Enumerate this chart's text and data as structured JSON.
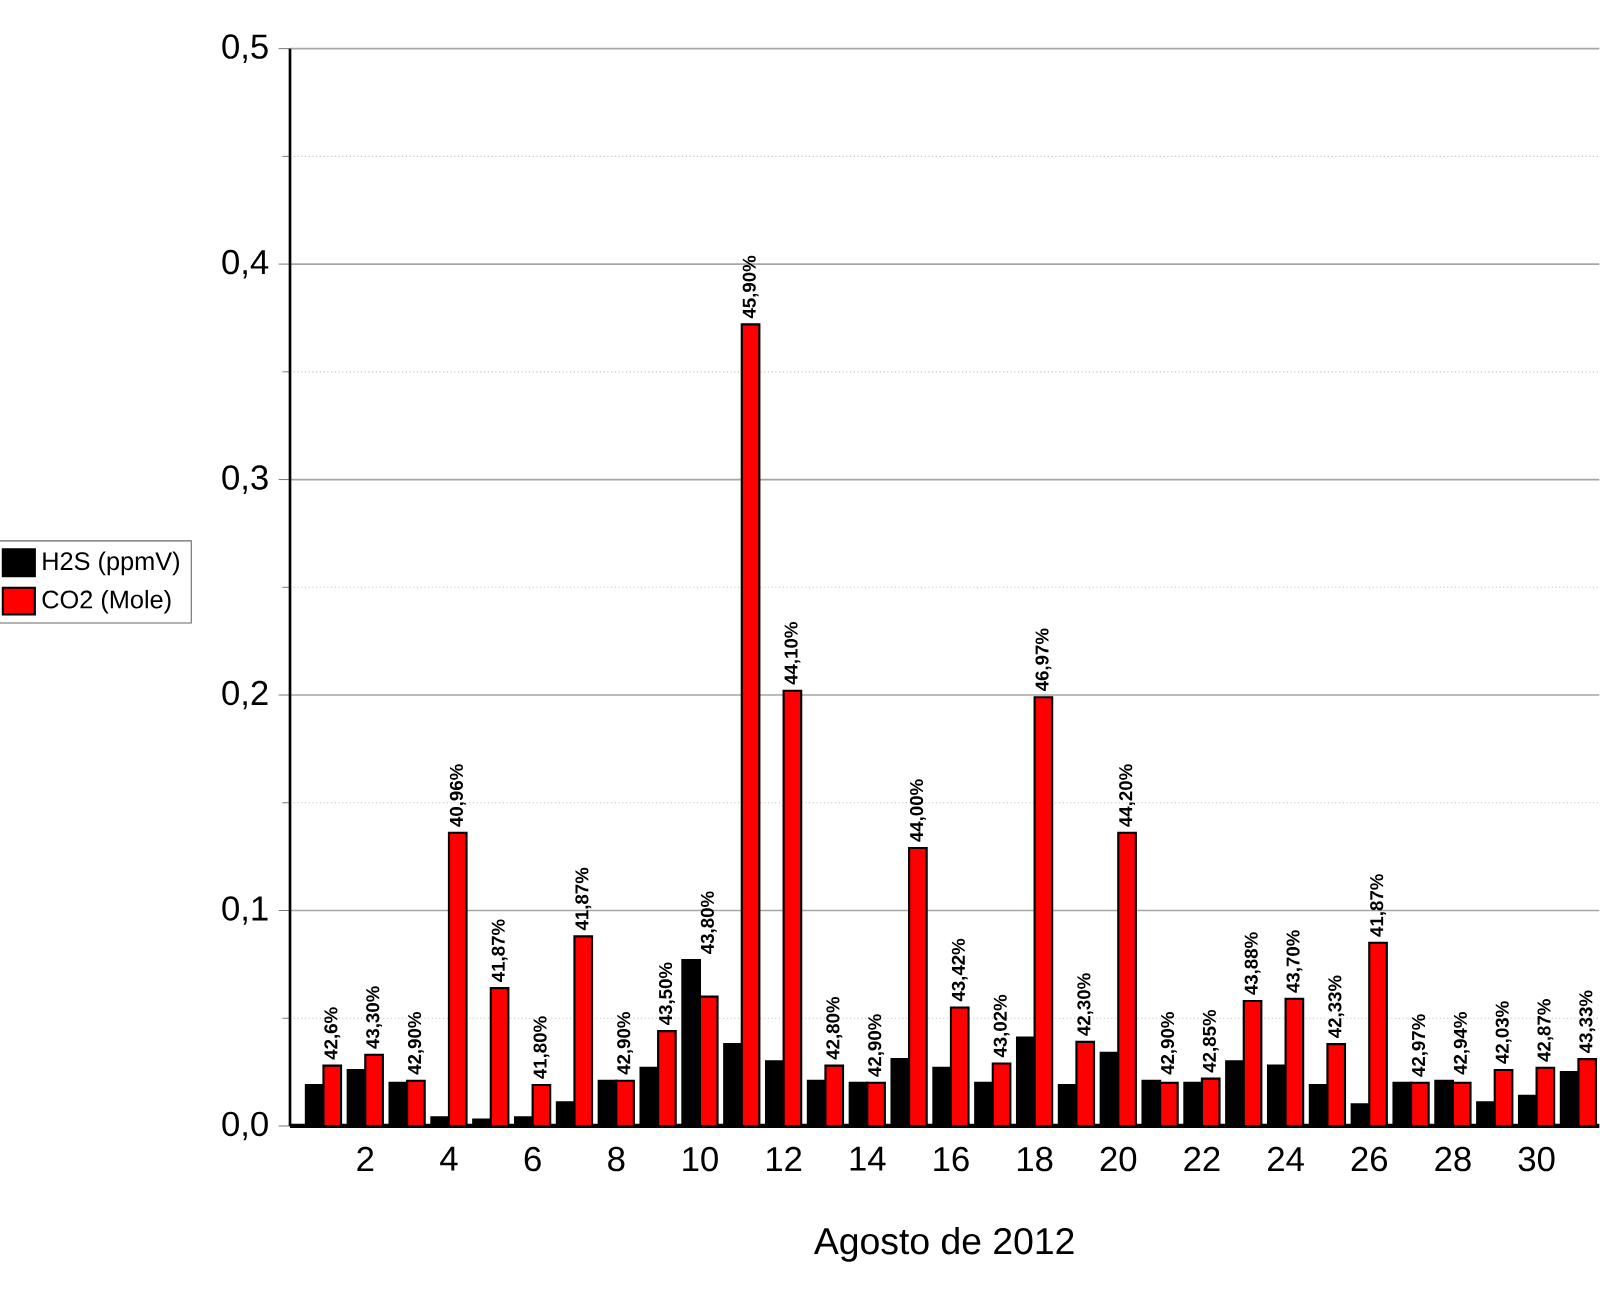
{
  "chart_data": {
    "type": "bar",
    "xlabel": "Agosto de 2012",
    "x": [
      1,
      2,
      3,
      4,
      5,
      6,
      7,
      8,
      9,
      10,
      11,
      12,
      13,
      14,
      15,
      16,
      17,
      18,
      19,
      20,
      21,
      22,
      23,
      24,
      25,
      26,
      27,
      28,
      29,
      30,
      31
    ],
    "series": [
      {
        "name": "H2S (ppmV)",
        "color": "#000000",
        "values": [
          0.019,
          0.026,
          0.02,
          0.004,
          0.003,
          0.004,
          0.011,
          0.021,
          0.027,
          0.077,
          0.038,
          0.03,
          0.021,
          0.02,
          0.031,
          0.027,
          0.02,
          0.041,
          0.019,
          0.034,
          0.021,
          0.02,
          0.03,
          0.028,
          0.019,
          0.01,
          0.02,
          0.021,
          0.011,
          0.014,
          0.025
        ]
      },
      {
        "name": "CO2 (Mole)",
        "color": "#ff0000",
        "values": [
          0.028,
          0.033,
          0.021,
          0.136,
          0.064,
          0.019,
          0.088,
          0.021,
          0.044,
          0.06,
          0.372,
          0.202,
          0.028,
          0.02,
          0.129,
          0.055,
          0.029,
          0.199,
          0.039,
          0.136,
          0.02,
          0.022,
          0.058,
          0.059,
          0.038,
          0.085,
          0.02,
          0.02,
          0.026,
          0.027,
          0.031
        ]
      }
    ],
    "annotations": [
      {
        "text": "42,6%",
        "x": 1,
        "y": 0.028
      },
      {
        "text": "43,30%",
        "x": 2,
        "y": 0.033
      },
      {
        "text": "42,90%",
        "x": 3,
        "y": 0.021
      },
      {
        "text": "40,96%",
        "x": 4,
        "y": 0.136
      },
      {
        "text": "41,87%",
        "x": 5,
        "y": 0.064
      },
      {
        "text": "41,80%",
        "x": 6,
        "y": 0.019
      },
      {
        "text": "41,87%",
        "x": 7,
        "y": 0.088
      },
      {
        "text": "42,90%",
        "x": 8,
        "y": 0.021
      },
      {
        "text": "43,50%",
        "x": 9,
        "y": 0.044
      },
      {
        "text": "43,80%",
        "x": 10,
        "y": 0.077
      },
      {
        "text": "45,90%",
        "x": 11,
        "y": 0.372
      },
      {
        "text": "44,10%",
        "x": 12,
        "y": 0.202
      },
      {
        "text": "42,80%",
        "x": 13,
        "y": 0.028
      },
      {
        "text": "42,90%",
        "x": 14,
        "y": 0.02
      },
      {
        "text": "44,00%",
        "x": 15,
        "y": 0.129
      },
      {
        "text": "43,42%",
        "x": 16,
        "y": 0.055
      },
      {
        "text": "43,02%",
        "x": 17,
        "y": 0.029
      },
      {
        "text": "46,97%",
        "x": 18,
        "y": 0.199
      },
      {
        "text": "42,30%",
        "x": 19,
        "y": 0.039
      },
      {
        "text": "44,20%",
        "x": 20,
        "y": 0.136
      },
      {
        "text": "42,90%",
        "x": 21,
        "y": 0.021
      },
      {
        "text": "42,85%",
        "x": 22,
        "y": 0.022
      },
      {
        "text": "43,88%",
        "x": 23,
        "y": 0.058
      },
      {
        "text": "43,70%",
        "x": 24,
        "y": 0.059
      },
      {
        "text": "42,33%",
        "x": 25,
        "y": 0.038
      },
      {
        "text": "41,87%",
        "x": 26,
        "y": 0.085
      },
      {
        "text": "42,97%",
        "x": 27,
        "y": 0.02
      },
      {
        "text": "42,94%",
        "x": 28,
        "y": 0.021
      },
      {
        "text": "42,03%",
        "x": 29,
        "y": 0.026
      },
      {
        "text": "42,87%",
        "x": 30,
        "y": 0.027
      },
      {
        "text": "43,33%",
        "x": 31,
        "y": 0.031
      }
    ],
    "xlim": [
      0.2,
      31.5
    ],
    "xticks": [
      2,
      4,
      6,
      8,
      10,
      12,
      14,
      16,
      18,
      20,
      22,
      24,
      26,
      28,
      30
    ],
    "ylim": [
      0,
      0.5
    ],
    "yticks": [
      {
        "value": 0,
        "label": "0,0"
      },
      {
        "value": 0.1,
        "label": "0,1"
      },
      {
        "value": 0.2,
        "label": "0,2"
      },
      {
        "value": 0.3,
        "label": "0,3"
      },
      {
        "value": 0.4,
        "label": "0,4"
      },
      {
        "value": 0.5,
        "label": "0,5"
      }
    ],
    "grid": "y",
    "legend": "left"
  }
}
